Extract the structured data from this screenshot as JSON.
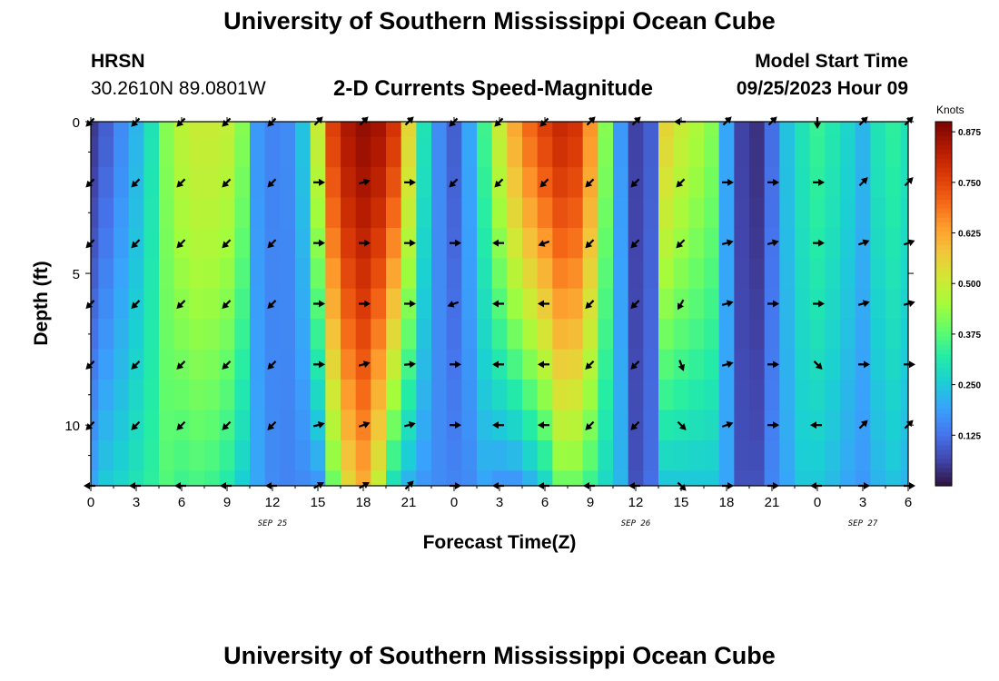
{
  "header": {
    "title": "University of Southern Mississippi Ocean Cube",
    "station": "HRSN",
    "coords": "30.2610N  89.0801W",
    "subtitle": "2-D Currents Speed-Magnitude",
    "model_start_label": "Model Start Time",
    "model_start_value": "09/25/2023 Hour 09"
  },
  "footer": {
    "title": "University of Southern Mississippi Ocean Cube"
  },
  "colors": {
    "colormap": [
      "#30123b",
      "#4145ab",
      "#4675ed",
      "#39a2fc",
      "#1bcfd4",
      "#24eca6",
      "#61fc6c",
      "#a4fc3b",
      "#d1e834",
      "#f3c63a",
      "#fe9b2d",
      "#f36315",
      "#d93806",
      "#b11901",
      "#7a0402"
    ]
  },
  "chart_data": {
    "type": "heatmap",
    "title": "2-D Currents Speed-Magnitude",
    "xlabel": "Forecast Time(Z)",
    "ylabel": "Depth (ft)",
    "x_ticks": [
      "0",
      "3",
      "6",
      "9",
      "12",
      "15",
      "18",
      "21",
      "0",
      "3",
      "6",
      "9",
      "12",
      "15",
      "18",
      "21",
      "0",
      "3",
      "6"
    ],
    "x_range_hours": [
      0,
      54
    ],
    "date_labels": [
      {
        "text": "SEP 25",
        "hour": 12
      },
      {
        "text": "SEP 26",
        "hour": 36
      },
      {
        "text": "SEP 27",
        "hour": 51
      }
    ],
    "y_ticks": [
      "0",
      "5",
      "10"
    ],
    "y_range_ft": [
      0,
      12
    ],
    "colorbar": {
      "label": "Knots",
      "min": 0,
      "max": 0.9,
      "ticks": [
        "0.875",
        "0.750",
        "0.625",
        "0.500",
        "0.375",
        "0.250",
        "0.125"
      ]
    },
    "depth_ft": [
      0,
      1,
      2,
      3,
      4,
      5,
      6,
      7,
      8,
      9,
      10,
      11,
      12
    ],
    "speed_by_hour": [
      [
        0,
        0.05,
        0.2
      ],
      [
        1,
        0.1,
        0.25
      ],
      [
        2,
        0.16,
        0.27
      ],
      [
        3,
        0.22,
        0.3
      ],
      [
        4,
        0.3,
        0.33
      ],
      [
        5,
        0.42,
        0.37
      ],
      [
        6,
        0.48,
        0.35
      ],
      [
        7,
        0.5,
        0.36
      ],
      [
        8,
        0.5,
        0.35
      ],
      [
        9,
        0.49,
        0.32
      ],
      [
        10,
        0.42,
        0.26
      ],
      [
        11,
        0.18,
        0.2
      ],
      [
        12,
        0.15,
        0.16
      ],
      [
        13,
        0.16,
        0.15
      ],
      [
        14,
        0.24,
        0.16
      ],
      [
        15,
        0.5,
        0.18
      ],
      [
        16,
        0.76,
        0.4
      ],
      [
        17,
        0.84,
        0.55
      ],
      [
        18,
        0.87,
        0.62
      ],
      [
        19,
        0.85,
        0.5
      ],
      [
        20,
        0.78,
        0.3
      ],
      [
        21,
        0.55,
        0.22
      ],
      [
        22,
        0.3,
        0.18
      ],
      [
        23,
        0.16,
        0.16
      ],
      [
        24,
        0.1,
        0.15
      ],
      [
        25,
        0.2,
        0.16
      ],
      [
        26,
        0.35,
        0.2
      ],
      [
        27,
        0.5,
        0.18
      ],
      [
        28,
        0.62,
        0.18
      ],
      [
        29,
        0.7,
        0.22
      ],
      [
        30,
        0.76,
        0.28
      ],
      [
        31,
        0.8,
        0.4
      ],
      [
        32,
        0.78,
        0.4
      ],
      [
        33,
        0.65,
        0.35
      ],
      [
        34,
        0.42,
        0.28
      ],
      [
        35,
        0.18,
        0.22
      ],
      [
        36,
        0.06,
        0.08
      ],
      [
        37,
        0.1,
        0.12
      ],
      [
        38,
        0.55,
        0.25
      ],
      [
        39,
        0.5,
        0.25
      ],
      [
        40,
        0.46,
        0.25
      ],
      [
        41,
        0.42,
        0.25
      ],
      [
        42,
        0.2,
        0.2
      ],
      [
        43,
        0.06,
        0.08
      ],
      [
        44,
        0.04,
        0.08
      ],
      [
        45,
        0.12,
        0.15
      ],
      [
        46,
        0.24,
        0.2
      ],
      [
        47,
        0.3,
        0.25
      ],
      [
        48,
        0.34,
        0.25
      ],
      [
        49,
        0.31,
        0.23
      ],
      [
        50,
        0.27,
        0.2
      ],
      [
        51,
        0.22,
        0.18
      ],
      [
        52,
        0.3,
        0.22
      ],
      [
        53,
        0.33,
        0.24
      ],
      [
        54,
        0.3,
        0.22
      ]
    ],
    "vector_hours": [
      0,
      3,
      6,
      9,
      12,
      15,
      18,
      21,
      24,
      27,
      30,
      33,
      36,
      39,
      42,
      45,
      48,
      51,
      54
    ],
    "vector_depths_ft": [
      0,
      2,
      4,
      6,
      8,
      10,
      12
    ],
    "vector_directions_deg": [
      [
        225,
        225,
        225,
        225,
        225,
        225,
        180
      ],
      [
        225,
        225,
        225,
        225,
        225,
        225,
        180
      ],
      [
        225,
        225,
        225,
        225,
        225,
        225,
        180
      ],
      [
        225,
        225,
        225,
        225,
        225,
        225,
        180
      ],
      [
        225,
        225,
        225,
        225,
        225,
        225,
        180
      ],
      [
        45,
        0,
        0,
        0,
        0,
        15,
        30
      ],
      [
        45,
        15,
        0,
        0,
        15,
        20,
        30
      ],
      [
        45,
        0,
        0,
        0,
        5,
        15,
        45
      ],
      [
        225,
        225,
        0,
        200,
        0,
        0,
        0
      ],
      [
        225,
        225,
        180,
        180,
        180,
        180,
        180
      ],
      [
        225,
        225,
        200,
        180,
        180,
        180,
        180
      ],
      [
        45,
        225,
        225,
        225,
        225,
        225,
        180
      ],
      [
        45,
        225,
        225,
        225,
        225,
        225,
        180
      ],
      [
        180,
        225,
        225,
        240,
        290,
        315,
        315
      ],
      [
        45,
        0,
        15,
        15,
        15,
        20,
        0
      ],
      [
        45,
        0,
        15,
        0,
        0,
        0,
        0
      ],
      [
        270,
        0,
        0,
        0,
        315,
        180,
        180
      ],
      [
        45,
        45,
        20,
        15,
        0,
        45,
        0
      ],
      [
        45,
        45,
        20,
        15,
        0,
        45,
        0
      ]
    ]
  }
}
